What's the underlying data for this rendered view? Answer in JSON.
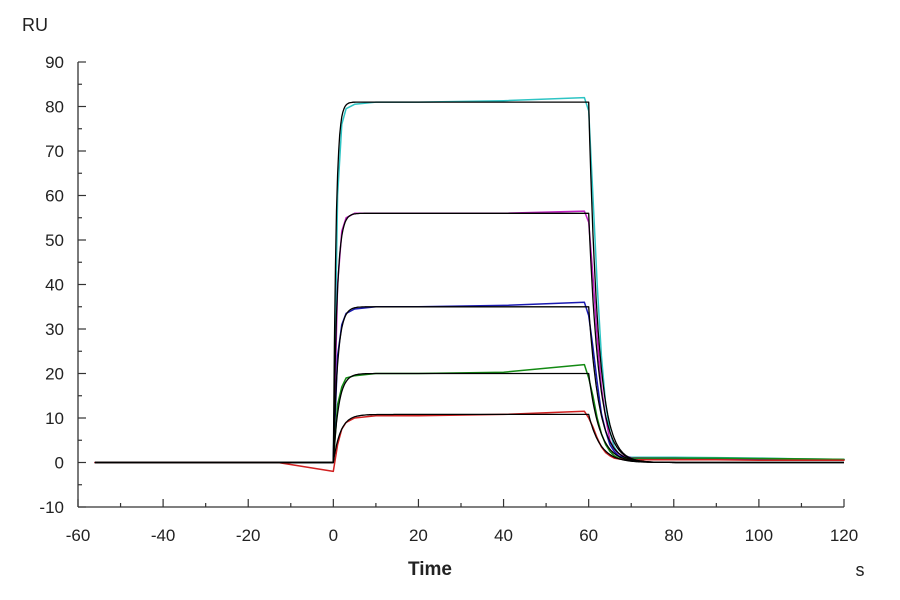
{
  "chart_data": {
    "type": "line",
    "title": "",
    "ylabel": "RU",
    "xlabel": "Time",
    "xunit": "s",
    "xlim": [
      -60,
      120
    ],
    "ylim": [
      -10,
      90
    ],
    "xticks": [
      -60,
      -40,
      -20,
      0,
      20,
      40,
      60,
      80,
      100,
      120
    ],
    "yticks": [
      -10,
      0,
      10,
      20,
      30,
      40,
      50,
      60,
      70,
      80,
      90
    ],
    "grid": false,
    "legend": "none",
    "association_start": 0,
    "dissociation_start": 60,
    "series": [
      {
        "color": "#2ec4c4",
        "x": [
          -56,
          -40,
          -13,
          0,
          1,
          2,
          3,
          5,
          10,
          20,
          40,
          59,
          60,
          61,
          62,
          63,
          64,
          65,
          66,
          67,
          68,
          70,
          75,
          80,
          90,
          100,
          110,
          120
        ],
        "y": [
          0,
          0,
          0,
          0,
          60,
          76,
          79.5,
          80.5,
          81,
          81,
          81.3,
          82,
          79,
          60,
          40,
          24,
          13,
          7,
          3.5,
          2,
          1.5,
          1.2,
          1.2,
          1.2,
          1.1,
          1,
          0.8,
          0.7
        ]
      },
      {
        "color": "#c020c0",
        "x": [
          -56,
          -40,
          -13,
          0,
          1,
          2,
          3,
          5,
          10,
          20,
          40,
          59,
          60,
          61,
          62,
          63,
          64,
          65,
          66,
          67,
          68,
          70,
          75,
          80,
          90,
          100,
          110,
          120
        ],
        "y": [
          0,
          0,
          0,
          0,
          40,
          52,
          55,
          56,
          56,
          56,
          56,
          56.5,
          54,
          42,
          28,
          17,
          10,
          5,
          3,
          2,
          1.5,
          1.1,
          1,
          1,
          0.9,
          0.8,
          0.7,
          0.6
        ]
      },
      {
        "color": "#1a1ab0",
        "x": [
          -56,
          -40,
          -13,
          0,
          1,
          2,
          3,
          5,
          10,
          20,
          40,
          59,
          60,
          61,
          62,
          63,
          64,
          65,
          66,
          67,
          68,
          70,
          75,
          80,
          90,
          100,
          110,
          120
        ],
        "y": [
          0,
          0,
          0,
          0,
          24,
          31,
          33.5,
          34.5,
          35,
          35,
          35.3,
          36,
          33,
          26,
          18,
          11,
          7,
          4,
          2.5,
          1.5,
          1.2,
          1,
          1,
          1,
          0.9,
          0.8,
          0.7,
          0.6
        ]
      },
      {
        "color": "#138a13",
        "x": [
          -56,
          -40,
          -13,
          0,
          1,
          2,
          3,
          5,
          10,
          20,
          40,
          59,
          60,
          61,
          62,
          63,
          64,
          65,
          66,
          67,
          68,
          70,
          75,
          80,
          90,
          100,
          110,
          120
        ],
        "y": [
          0,
          0,
          0,
          0,
          13,
          17,
          19,
          19.5,
          20,
          20,
          20.3,
          22,
          19,
          15,
          10,
          6.5,
          4,
          2.5,
          1.5,
          1,
          1,
          1,
          1,
          1,
          1,
          0.9,
          0.8,
          0.7
        ]
      },
      {
        "color": "#d02020",
        "x": [
          -56,
          -40,
          -13,
          0,
          1,
          2,
          3,
          5,
          10,
          20,
          40,
          59,
          60,
          61,
          62,
          63,
          64,
          65,
          66,
          67,
          68,
          70,
          75,
          80,
          90,
          100,
          110,
          120
        ],
        "y": [
          0,
          0,
          0,
          -2,
          4,
          7.5,
          9,
          10,
          10.5,
          10.5,
          10.8,
          11.5,
          10,
          8,
          5.5,
          3.5,
          2.2,
          1.5,
          1,
          0.8,
          0.7,
          0.6,
          0.6,
          0.6,
          0.6,
          0.5,
          0.5,
          0.5
        ]
      }
    ],
    "fits": [
      {
        "plateau": 81,
        "ka": 1.6,
        "kd": 0.45,
        "x_end": 120
      },
      {
        "plateau": 56,
        "ka": 1.2,
        "kd": 0.42,
        "x_end": 120
      },
      {
        "plateau": 35,
        "ka": 1.0,
        "kd": 0.4,
        "x_end": 120
      },
      {
        "plateau": 20,
        "ka": 0.8,
        "kd": 0.38,
        "x_end": 120
      },
      {
        "plateau": 10.8,
        "ka": 0.6,
        "kd": 0.36,
        "x_end": 120
      }
    ]
  }
}
